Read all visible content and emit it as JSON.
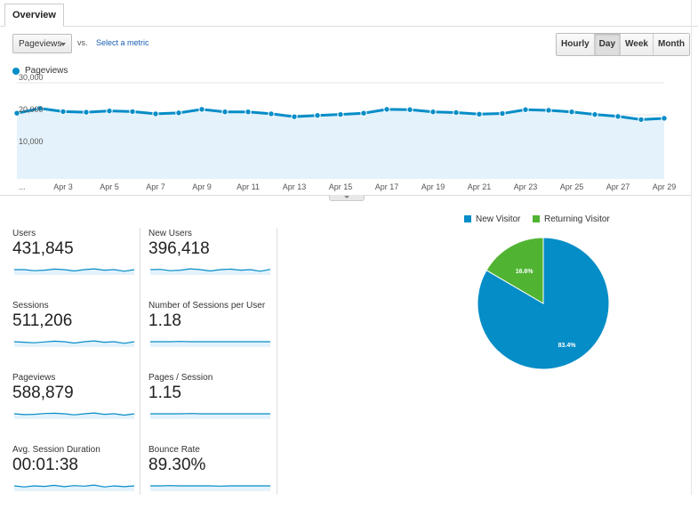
{
  "tab": {
    "label": "Overview"
  },
  "metric_selector": {
    "selected": "Pageviews",
    "vs": "vs.",
    "select_metric": "Select a metric"
  },
  "granularity": [
    "Hourly",
    "Day",
    "Week",
    "Month"
  ],
  "granularity_active": "Day",
  "colors": {
    "primary": "#058dc7",
    "returning": "#50b432",
    "area": "#e4f2fb"
  },
  "line_legend": "Pageviews",
  "chart_data": [
    {
      "type": "line",
      "series": [
        {
          "name": "Pageviews",
          "values": [
            20500,
            22000,
            21000,
            20800,
            21200,
            21000,
            20300,
            20600,
            21700,
            20900,
            20900,
            20300,
            19400,
            19800,
            20100,
            20500,
            21700,
            21600,
            20900,
            20700,
            20200,
            20400,
            21600,
            21400,
            20900,
            20100,
            19500,
            18500,
            18900
          ]
        }
      ],
      "categories": [
        "",
        "Apr 2",
        "Apr 3",
        "Apr 4",
        "Apr 5",
        "Apr 6",
        "Apr 7",
        "Apr 8",
        "Apr 9",
        "Apr 10",
        "Apr 11",
        "Apr 12",
        "Apr 13",
        "Apr 14",
        "Apr 15",
        "Apr 16",
        "Apr 17",
        "Apr 18",
        "Apr 19",
        "Apr 20",
        "Apr 21",
        "Apr 22",
        "Apr 23",
        "Apr 24",
        "Apr 25",
        "Apr 26",
        "Apr 27",
        "Apr 28",
        "Apr 29"
      ],
      "x_tick_labels": [
        "...",
        "Apr 3",
        "Apr 5",
        "Apr 7",
        "Apr 9",
        "Apr 11",
        "Apr 13",
        "Apr 15",
        "Apr 17",
        "Apr 19",
        "Apr 21",
        "Apr 23",
        "Apr 25",
        "Apr 27",
        "Apr 29"
      ],
      "y_tick_labels": [
        "30,000",
        "20,000",
        "10,000"
      ],
      "ylim": [
        0,
        30000
      ]
    },
    {
      "type": "pie",
      "slices": [
        {
          "name": "New Visitor",
          "value": 83.4,
          "label": "83.4%"
        },
        {
          "name": "Returning Visitor",
          "value": 16.6,
          "label": "16.6%"
        }
      ]
    }
  ],
  "metrics": [
    {
      "label": "Users",
      "value": "431,845",
      "spark": [
        5,
        5,
        4.6,
        4.8,
        5.2,
        5,
        4.5,
        5,
        5.3,
        4.8,
        5,
        4.4,
        5
      ]
    },
    {
      "label": "New Users",
      "value": "396,418",
      "spark": [
        5,
        5.1,
        4.6,
        4.8,
        5.3,
        5,
        4.5,
        5,
        5.2,
        4.8,
        5,
        4.4,
        5.1
      ]
    },
    {
      "label": "Sessions",
      "value": "511,206",
      "spark": [
        5,
        4.8,
        4.6,
        4.9,
        5.2,
        5,
        4.5,
        5,
        5.3,
        4.8,
        5,
        4.4,
        5
      ]
    },
    {
      "label": "Number of Sessions per User",
      "value": "1.18",
      "spark": [
        5,
        5,
        5,
        5.1,
        5,
        5,
        5,
        5,
        5,
        5,
        5,
        5,
        5
      ]
    },
    {
      "label": "Pageviews",
      "value": "588,879",
      "spark": [
        5,
        4.7,
        4.8,
        5.1,
        5.2,
        5,
        4.6,
        5,
        5.3,
        4.8,
        5,
        4.5,
        5
      ]
    },
    {
      "label": "Pages / Session",
      "value": "1.15",
      "spark": [
        5,
        5,
        5,
        5,
        5.1,
        5,
        5,
        5,
        5,
        5,
        5,
        5,
        5
      ]
    },
    {
      "label": "Avg. Session Duration",
      "value": "00:01:38",
      "spark": [
        5,
        4.6,
        5,
        4.8,
        5.2,
        4.7,
        5.1,
        4.9,
        5.3,
        4.6,
        5,
        4.7,
        5
      ]
    },
    {
      "label": "Bounce Rate",
      "value": "89.30%",
      "spark": [
        5,
        5,
        5.1,
        5,
        5,
        5,
        5,
        4.9,
        5,
        5,
        5,
        5,
        5
      ]
    }
  ]
}
